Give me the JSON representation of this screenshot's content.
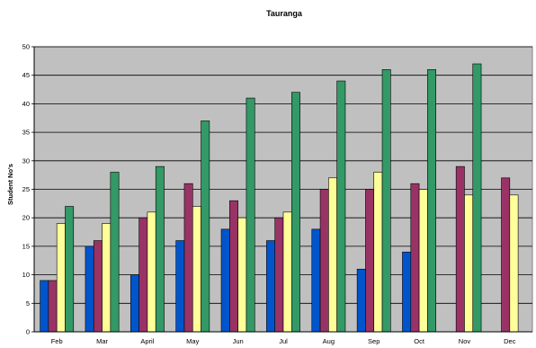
{
  "chart_data": {
    "type": "bar",
    "title": "Tauranga",
    "xlabel": "",
    "ylabel": "Student No's",
    "ylim": [
      0,
      50
    ],
    "yticks": [
      0,
      5,
      10,
      15,
      20,
      25,
      30,
      35,
      40,
      45,
      50
    ],
    "grid": true,
    "legend": "none",
    "background": "#c0c0c0",
    "categories": [
      "Feb",
      "Mar",
      "April",
      "May",
      "Jun",
      "Jul",
      "Aug",
      "Sep",
      "Oct",
      "Nov",
      "Dec"
    ],
    "series": [
      {
        "color": "#0055cc",
        "values": [
          9,
          15,
          10,
          16,
          18,
          16,
          18,
          11,
          14,
          null,
          null
        ]
      },
      {
        "color": "#993366",
        "values": [
          9,
          16,
          20,
          26,
          23,
          20,
          25,
          25,
          26,
          29,
          27
        ]
      },
      {
        "color": "#ffff99",
        "values": [
          19,
          19,
          21,
          22,
          20,
          21,
          27,
          28,
          25,
          24,
          24
        ]
      },
      {
        "color": "#339966",
        "values": [
          22,
          28,
          29,
          37,
          41,
          42,
          44,
          46,
          46,
          47,
          null
        ]
      }
    ]
  }
}
